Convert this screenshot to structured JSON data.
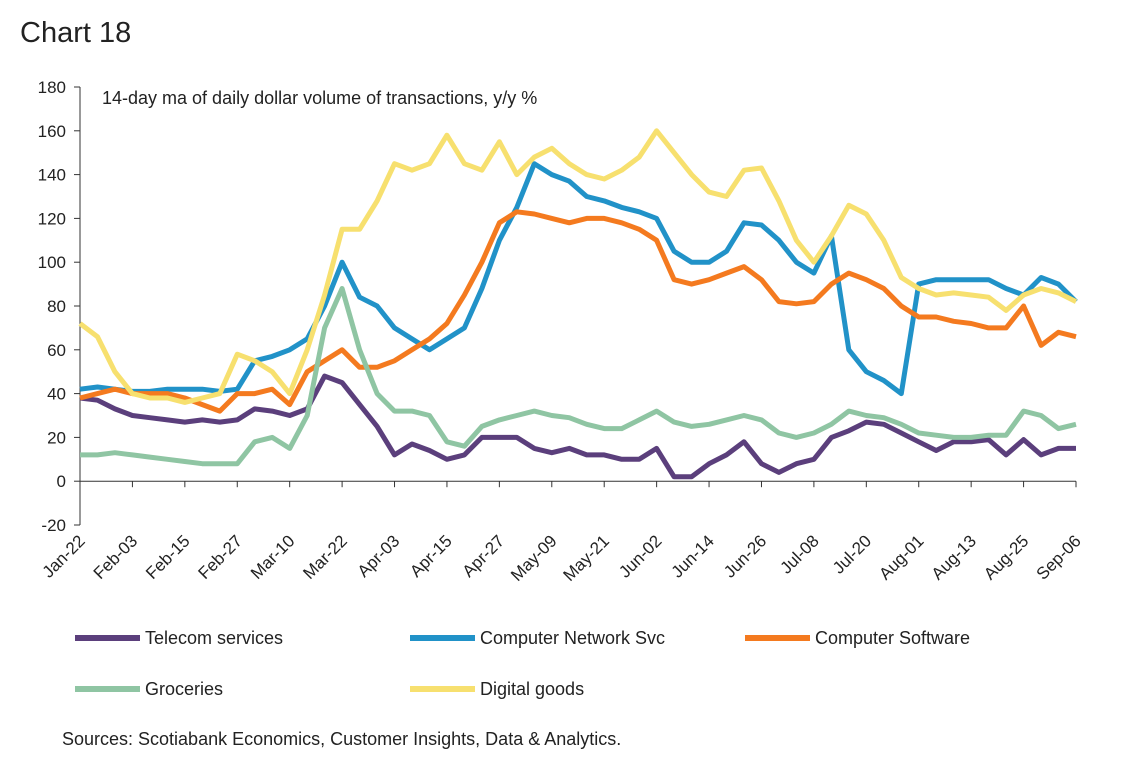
{
  "chart_data": {
    "type": "line",
    "title": "Chart 18",
    "annotation": "14-day ma of daily dollar volume of transactions, y/y %",
    "source": "Sources: Scotiabank Economics, Customer Insights, Data & Analytics.",
    "categories": [
      "Jan-22",
      null,
      null,
      "Feb-03",
      null,
      null,
      "Feb-15",
      null,
      null,
      "Feb-27",
      null,
      null,
      "Mar-10",
      null,
      null,
      "Mar-22",
      null,
      null,
      "Apr-03",
      null,
      null,
      "Apr-15",
      null,
      null,
      "Apr-27",
      null,
      null,
      "May-09",
      null,
      null,
      "May-21",
      null,
      null,
      "Jun-02",
      null,
      null,
      "Jun-14",
      null,
      null,
      "Jun-26",
      null,
      null,
      "Jul-08",
      null,
      null,
      "Jul-20",
      null,
      null,
      "Aug-01",
      null,
      null,
      "Aug-13",
      null,
      null,
      "Aug-25",
      null,
      null,
      "Sep-06"
    ],
    "ylim": [
      -20,
      180
    ],
    "yticks": [
      -20,
      0,
      20,
      40,
      60,
      80,
      100,
      120,
      140,
      160,
      180
    ],
    "grid": false,
    "series": [
      {
        "name": "Telecom services",
        "color": "#5b3f7c",
        "values": [
          38,
          37,
          33,
          30,
          29,
          28,
          27,
          28,
          27,
          28,
          33,
          32,
          30,
          33,
          48,
          45,
          35,
          25,
          12,
          17,
          14,
          10,
          12,
          20,
          20,
          20,
          15,
          13,
          15,
          12,
          12,
          10,
          10,
          15,
          2,
          2,
          8,
          12,
          18,
          8,
          4,
          8,
          10,
          20,
          23,
          27,
          26,
          22,
          18,
          14,
          18,
          18,
          19,
          12,
          19,
          12,
          15,
          15
        ]
      },
      {
        "name": "Computer Network Svc",
        "color": "#2192c8",
        "values": [
          42,
          43,
          42,
          41,
          41,
          42,
          42,
          42,
          41,
          42,
          55,
          57,
          60,
          65,
          80,
          100,
          84,
          80,
          70,
          65,
          60,
          65,
          70,
          88,
          110,
          125,
          145,
          140,
          137,
          130,
          128,
          125,
          123,
          120,
          105,
          100,
          100,
          105,
          118,
          117,
          110,
          100,
          95,
          112,
          60,
          50,
          46,
          40,
          90,
          92,
          92,
          92,
          92,
          88,
          85,
          93,
          90,
          82
        ]
      },
      {
        "name": "Computer Software",
        "color": "#f47a1f",
        "values": [
          38,
          40,
          42,
          40,
          40,
          40,
          38,
          35,
          32,
          40,
          40,
          42,
          35,
          50,
          55,
          60,
          52,
          52,
          55,
          60,
          65,
          72,
          85,
          100,
          118,
          123,
          122,
          120,
          118,
          120,
          120,
          118,
          115,
          110,
          92,
          90,
          92,
          95,
          98,
          92,
          82,
          81,
          82,
          90,
          95,
          92,
          88,
          80,
          75,
          75,
          73,
          72,
          70,
          70,
          80,
          62,
          68,
          66
        ]
      },
      {
        "name": "Groceries",
        "color": "#8fc5a3",
        "values": [
          12,
          12,
          13,
          12,
          11,
          10,
          9,
          8,
          8,
          8,
          18,
          20,
          15,
          30,
          70,
          88,
          60,
          40,
          32,
          32,
          30,
          18,
          16,
          25,
          28,
          30,
          32,
          30,
          29,
          26,
          24,
          24,
          28,
          32,
          27,
          25,
          26,
          28,
          30,
          28,
          22,
          20,
          22,
          26,
          32,
          30,
          29,
          26,
          22,
          21,
          20,
          20,
          21,
          21,
          32,
          30,
          24,
          26
        ]
      },
      {
        "name": "Digital goods",
        "color": "#f7e06f",
        "values": [
          72,
          66,
          50,
          40,
          38,
          38,
          36,
          38,
          40,
          58,
          55,
          50,
          40,
          60,
          85,
          115,
          115,
          128,
          145,
          142,
          145,
          158,
          145,
          142,
          155,
          140,
          148,
          152,
          145,
          140,
          138,
          142,
          148,
          160,
          150,
          140,
          132,
          130,
          142,
          143,
          128,
          110,
          100,
          112,
          126,
          122,
          110,
          93,
          88,
          85,
          86,
          85,
          84,
          78,
          85,
          88,
          86,
          82
        ]
      }
    ]
  }
}
